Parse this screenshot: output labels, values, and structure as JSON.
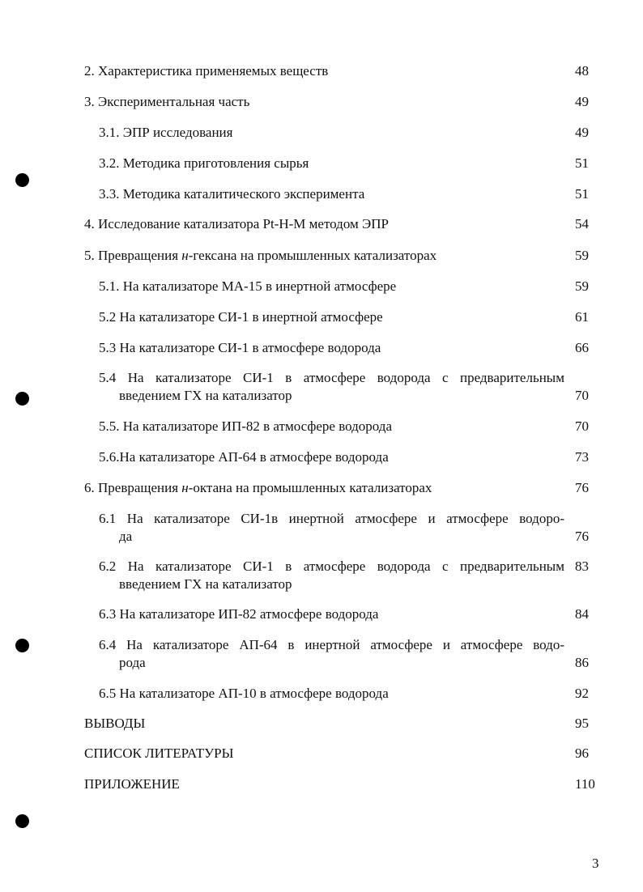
{
  "toc": [
    {
      "level": 0,
      "lines": [
        "2. Характеристика применяемых веществ"
      ],
      "page": "48"
    },
    {
      "level": 0,
      "lines": [
        "3. Экспериментальная часть"
      ],
      "page": "49"
    },
    {
      "level": 1,
      "lines": [
        "3.1. ЭПР исследования"
      ],
      "page": "49"
    },
    {
      "level": 1,
      "lines": [
        "3.2. Методика приготовления сырья"
      ],
      "page": "51"
    },
    {
      "level": 1,
      "lines": [
        "3.3. Методика каталитического эксперимента"
      ],
      "page": "51"
    },
    {
      "level": 0,
      "lines": [
        "4. Исследование катализатора Pt-H-M методом ЭПР"
      ],
      "page": "54"
    },
    {
      "level": 0,
      "prefix": "5. Превращения ",
      "italic": "н",
      "suffix": "-гексана на промышленных катализаторах",
      "page": "59"
    },
    {
      "level": 1,
      "lines": [
        "5.1. На катализаторе МА-15 в инертной атмосфере"
      ],
      "page": "59"
    },
    {
      "level": 1,
      "lines": [
        "5.2 На катализаторе СИ-1 в инертной атмосфере"
      ],
      "page": "61"
    },
    {
      "level": 1,
      "lines": [
        "5.3 На катализаторе СИ-1 в атмосфере водорода"
      ],
      "page": "66"
    },
    {
      "level": 1,
      "lines": [
        "5.4 На катализаторе СИ-1 в атмосфере водорода с предварительным",
        "введением ГХ на катализатор"
      ],
      "page": "70"
    },
    {
      "level": 1,
      "lines": [
        "5.5. На катализаторе ИП-82 в атмосфере водорода"
      ],
      "page": "70"
    },
    {
      "level": 1,
      "lines": [
        "5.6.На катализаторе АП-64 в атмосфере водорода"
      ],
      "page": "73"
    },
    {
      "level": 0,
      "prefix": "6. Превращения ",
      "italic": "н",
      "suffix": "-октана на промышленных катализаторах",
      "page": "76"
    },
    {
      "level": 1,
      "lines": [
        "6.1 На катализаторе СИ-1в инертной атмосфере и атмосфере водоро-",
        "да"
      ],
      "page": "76"
    },
    {
      "level": 1,
      "lines": [
        "6.2 На катализаторе СИ-1 в атмосфере водорода с предварительным",
        "введением ГХ на катализатор"
      ],
      "page": "83",
      "page_first_line": true
    },
    {
      "level": 1,
      "lines": [
        "6.3 На катализаторе ИП-82 атмосфере водорода"
      ],
      "page": "84"
    },
    {
      "level": 1,
      "lines": [
        "6.4 На катализаторе АП-64 в инертной атмосфере и атмосфере водо-",
        "рода"
      ],
      "page": "86"
    },
    {
      "level": 1,
      "lines": [
        "6.5 На катализаторе АП-10 в атмосфере водорода"
      ],
      "page": "92"
    },
    {
      "level": 0,
      "lines": [
        "ВЫВОДЫ"
      ],
      "page": "95"
    },
    {
      "level": 0,
      "lines": [
        "СПИСОК ЛИТЕРАТУРЫ"
      ],
      "page": "96"
    },
    {
      "level": 0,
      "lines": [
        "ПРИЛОЖЕНИЕ"
      ],
      "page": "110"
    }
  ],
  "page_number": "3"
}
